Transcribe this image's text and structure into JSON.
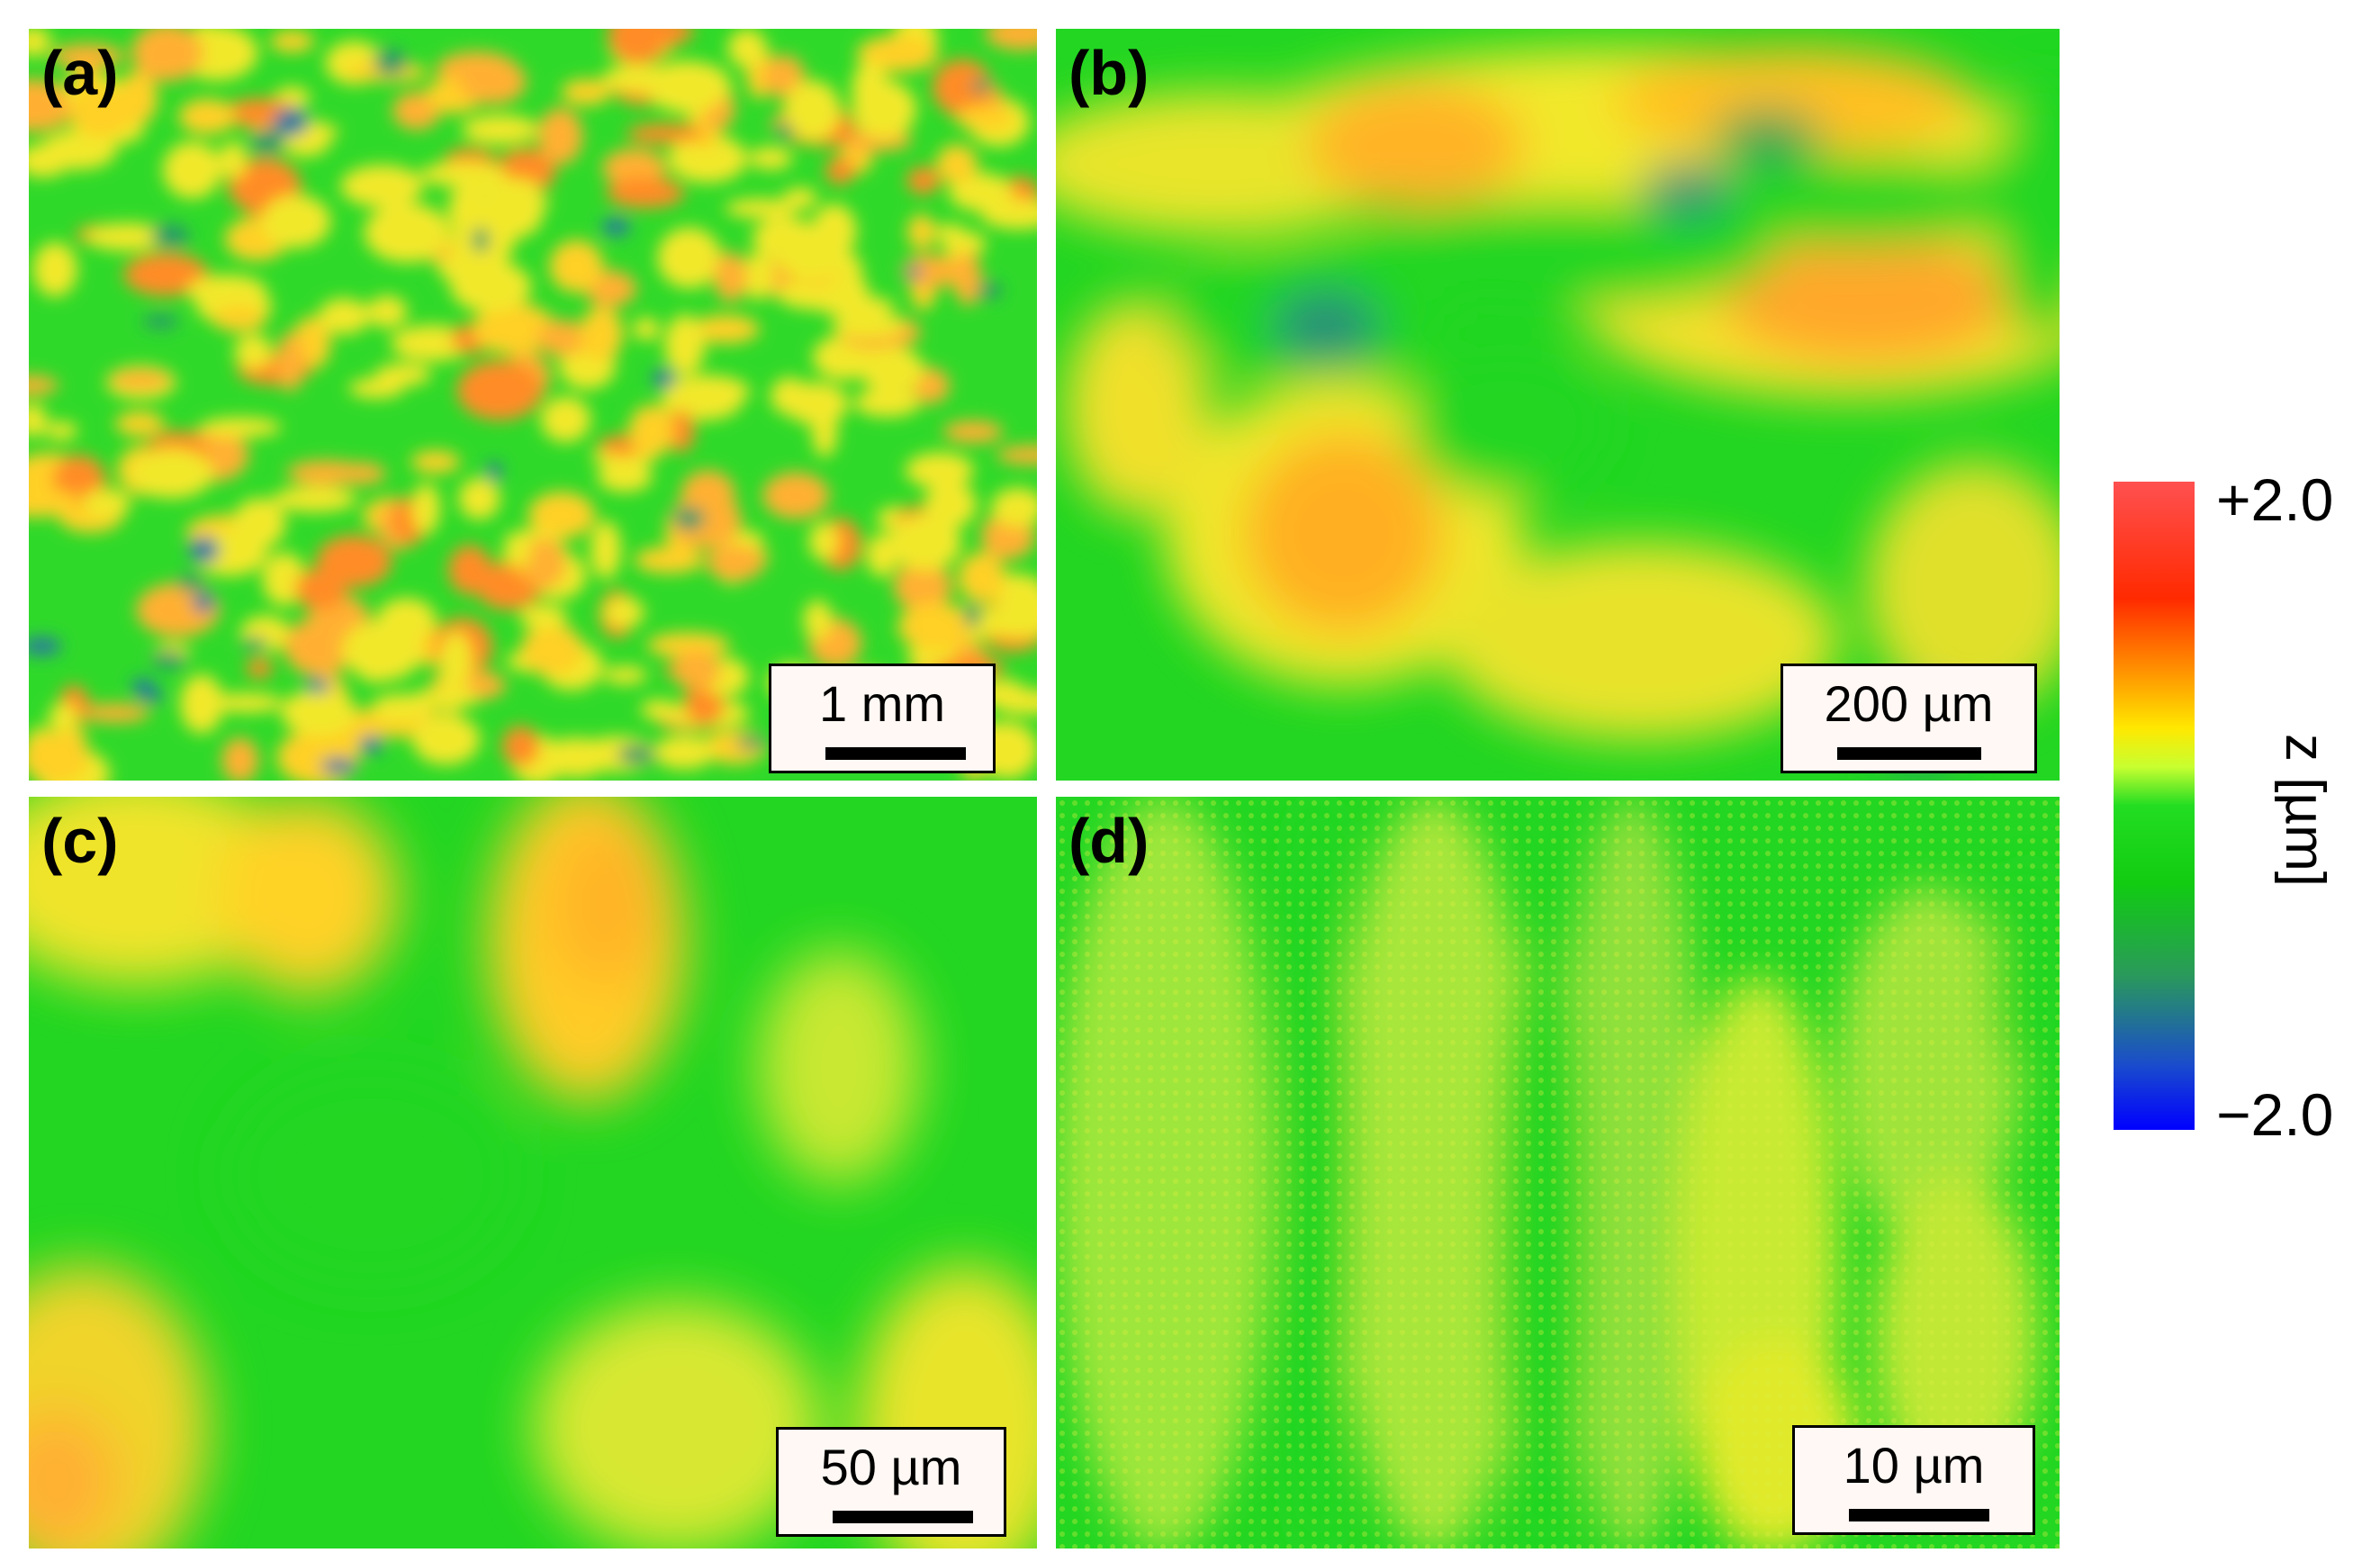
{
  "panels": [
    {
      "label": "(a)",
      "scale_text": "1 mm"
    },
    {
      "label": "(b)",
      "scale_text": "200 µm"
    },
    {
      "label": "(c)",
      "scale_text": "50 µm"
    },
    {
      "label": "(d)",
      "scale_text": "10 µm"
    }
  ],
  "colorbar": {
    "max_label": "+2.0",
    "min_label": "−2.0",
    "axis_label": "z [µm]",
    "colors": [
      "#ff5050",
      "#ff2a00",
      "#ff9a00",
      "#ffe800",
      "#22dd22",
      "#11cc11",
      "#1a4ccc",
      "#0000ff"
    ]
  }
}
